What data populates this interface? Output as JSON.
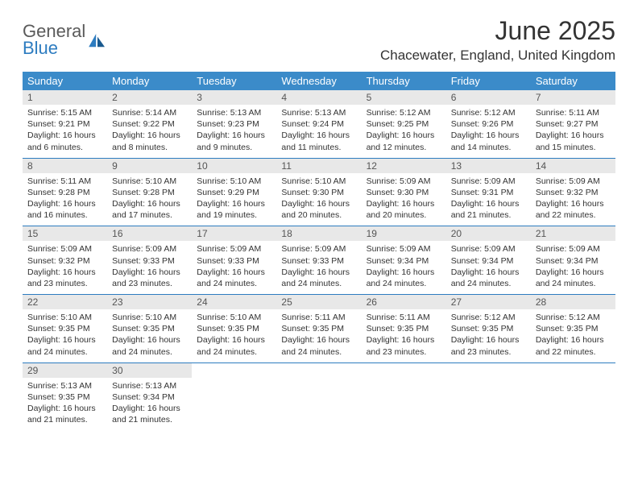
{
  "logo": {
    "text1": "General",
    "text2": "Blue"
  },
  "title": "June 2025",
  "location": "Chacewater, England, United Kingdom",
  "colors": {
    "header_bg": "#3b8bc9",
    "header_text": "#ffffff",
    "daynum_bg": "#e8e8e8",
    "daynum_text": "#555555",
    "rule": "#2d7cc0",
    "body_text": "#333333",
    "logo_gray": "#5a5a5a",
    "logo_blue": "#2d7cc0"
  },
  "weekdays": [
    "Sunday",
    "Monday",
    "Tuesday",
    "Wednesday",
    "Thursday",
    "Friday",
    "Saturday"
  ],
  "weeks": [
    [
      {
        "n": "1",
        "sr": "5:15 AM",
        "ss": "9:21 PM",
        "dl": "16 hours and 6 minutes."
      },
      {
        "n": "2",
        "sr": "5:14 AM",
        "ss": "9:22 PM",
        "dl": "16 hours and 8 minutes."
      },
      {
        "n": "3",
        "sr": "5:13 AM",
        "ss": "9:23 PM",
        "dl": "16 hours and 9 minutes."
      },
      {
        "n": "4",
        "sr": "5:13 AM",
        "ss": "9:24 PM",
        "dl": "16 hours and 11 minutes."
      },
      {
        "n": "5",
        "sr": "5:12 AM",
        "ss": "9:25 PM",
        "dl": "16 hours and 12 minutes."
      },
      {
        "n": "6",
        "sr": "5:12 AM",
        "ss": "9:26 PM",
        "dl": "16 hours and 14 minutes."
      },
      {
        "n": "7",
        "sr": "5:11 AM",
        "ss": "9:27 PM",
        "dl": "16 hours and 15 minutes."
      }
    ],
    [
      {
        "n": "8",
        "sr": "5:11 AM",
        "ss": "9:28 PM",
        "dl": "16 hours and 16 minutes."
      },
      {
        "n": "9",
        "sr": "5:10 AM",
        "ss": "9:28 PM",
        "dl": "16 hours and 17 minutes."
      },
      {
        "n": "10",
        "sr": "5:10 AM",
        "ss": "9:29 PM",
        "dl": "16 hours and 19 minutes."
      },
      {
        "n": "11",
        "sr": "5:10 AM",
        "ss": "9:30 PM",
        "dl": "16 hours and 20 minutes."
      },
      {
        "n": "12",
        "sr": "5:09 AM",
        "ss": "9:30 PM",
        "dl": "16 hours and 20 minutes."
      },
      {
        "n": "13",
        "sr": "5:09 AM",
        "ss": "9:31 PM",
        "dl": "16 hours and 21 minutes."
      },
      {
        "n": "14",
        "sr": "5:09 AM",
        "ss": "9:32 PM",
        "dl": "16 hours and 22 minutes."
      }
    ],
    [
      {
        "n": "15",
        "sr": "5:09 AM",
        "ss": "9:32 PM",
        "dl": "16 hours and 23 minutes."
      },
      {
        "n": "16",
        "sr": "5:09 AM",
        "ss": "9:33 PM",
        "dl": "16 hours and 23 minutes."
      },
      {
        "n": "17",
        "sr": "5:09 AM",
        "ss": "9:33 PM",
        "dl": "16 hours and 24 minutes."
      },
      {
        "n": "18",
        "sr": "5:09 AM",
        "ss": "9:33 PM",
        "dl": "16 hours and 24 minutes."
      },
      {
        "n": "19",
        "sr": "5:09 AM",
        "ss": "9:34 PM",
        "dl": "16 hours and 24 minutes."
      },
      {
        "n": "20",
        "sr": "5:09 AM",
        "ss": "9:34 PM",
        "dl": "16 hours and 24 minutes."
      },
      {
        "n": "21",
        "sr": "5:09 AM",
        "ss": "9:34 PM",
        "dl": "16 hours and 24 minutes."
      }
    ],
    [
      {
        "n": "22",
        "sr": "5:10 AM",
        "ss": "9:35 PM",
        "dl": "16 hours and 24 minutes."
      },
      {
        "n": "23",
        "sr": "5:10 AM",
        "ss": "9:35 PM",
        "dl": "16 hours and 24 minutes."
      },
      {
        "n": "24",
        "sr": "5:10 AM",
        "ss": "9:35 PM",
        "dl": "16 hours and 24 minutes."
      },
      {
        "n": "25",
        "sr": "5:11 AM",
        "ss": "9:35 PM",
        "dl": "16 hours and 24 minutes."
      },
      {
        "n": "26",
        "sr": "5:11 AM",
        "ss": "9:35 PM",
        "dl": "16 hours and 23 minutes."
      },
      {
        "n": "27",
        "sr": "5:12 AM",
        "ss": "9:35 PM",
        "dl": "16 hours and 23 minutes."
      },
      {
        "n": "28",
        "sr": "5:12 AM",
        "ss": "9:35 PM",
        "dl": "16 hours and 22 minutes."
      }
    ],
    [
      {
        "n": "29",
        "sr": "5:13 AM",
        "ss": "9:35 PM",
        "dl": "16 hours and 21 minutes."
      },
      {
        "n": "30",
        "sr": "5:13 AM",
        "ss": "9:34 PM",
        "dl": "16 hours and 21 minutes."
      },
      null,
      null,
      null,
      null,
      null
    ]
  ],
  "labels": {
    "sunrise": "Sunrise: ",
    "sunset": "Sunset: ",
    "daylight": "Daylight: "
  }
}
